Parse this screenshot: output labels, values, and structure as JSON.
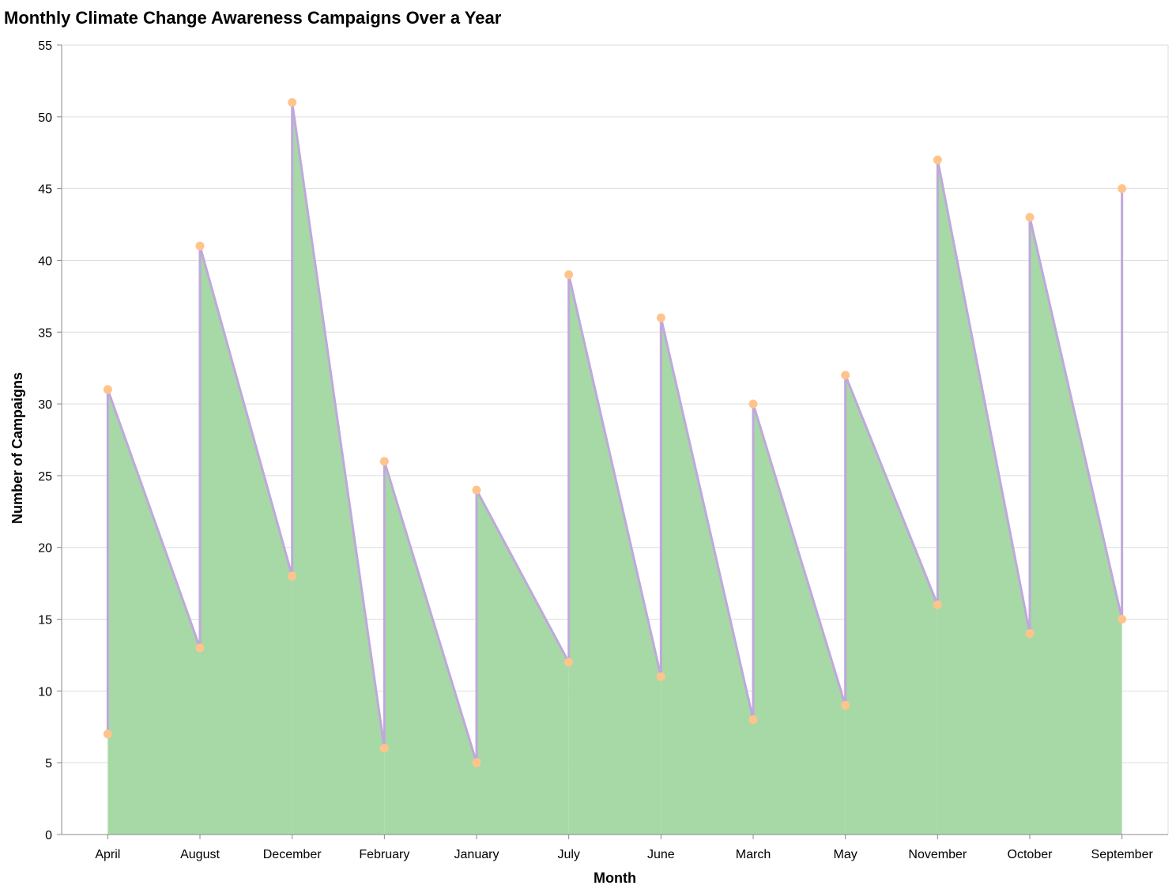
{
  "chart_data": {
    "type": "area",
    "title": "Monthly Climate Change Awareness Campaigns Over a Year",
    "xlabel": "Month",
    "ylabel": "Number of Campaigns",
    "ylim": [
      0,
      55
    ],
    "yticks": [
      0,
      5,
      10,
      15,
      20,
      25,
      30,
      35,
      40,
      45,
      50,
      55
    ],
    "grid": true,
    "categories": [
      "April",
      "August",
      "December",
      "February",
      "January",
      "July",
      "June",
      "March",
      "May",
      "November",
      "October",
      "September"
    ],
    "segments": [
      {
        "month": "April",
        "low": 7,
        "high": 31
      },
      {
        "month": "August",
        "low": 13,
        "high": 41
      },
      {
        "month": "December",
        "low": 18,
        "high": 51
      },
      {
        "month": "February",
        "low": 6,
        "high": 26
      },
      {
        "month": "January",
        "low": 5,
        "high": 24
      },
      {
        "month": "July",
        "low": 12,
        "high": 39
      },
      {
        "month": "June",
        "low": 11,
        "high": 36
      },
      {
        "month": "March",
        "low": 8,
        "high": 30
      },
      {
        "month": "May",
        "low": 9,
        "high": 32
      },
      {
        "month": "November",
        "low": 16,
        "high": 47
      },
      {
        "month": "October",
        "low": 14,
        "high": 43
      },
      {
        "month": "September",
        "low": 15,
        "high": 45
      }
    ],
    "colors": {
      "area": "#a6d9a6",
      "line": "#c0a8dc",
      "point": "#ffc48c",
      "grid": "#dddddd",
      "axis": "#888888"
    }
  }
}
